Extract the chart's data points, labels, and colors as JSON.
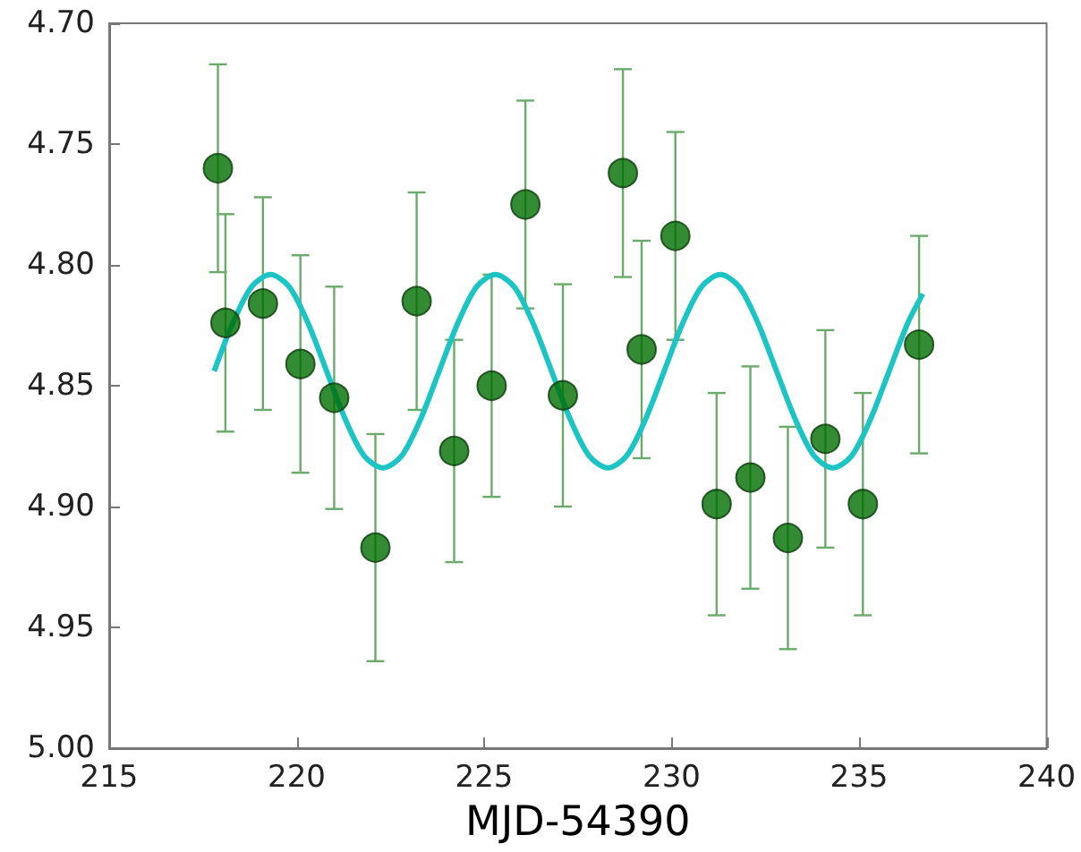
{
  "chart_data": {
    "type": "scatter",
    "xlabel": "MJD-54390",
    "xlim": [
      215,
      240
    ],
    "xticks": [
      215,
      220,
      225,
      230,
      235,
      240
    ],
    "ylim": [
      5.0,
      4.7
    ],
    "yticks": [
      {
        "value": 4.7,
        "label": "4.70"
      },
      {
        "value": 4.75,
        "label": "4.75"
      },
      {
        "value": 4.8,
        "label": "4.80"
      },
      {
        "value": 4.85,
        "label": "4.85"
      },
      {
        "value": 4.9,
        "label": "4.90"
      },
      {
        "value": 4.95,
        "label": "4.95"
      },
      {
        "value": 5.0,
        "label": "5.00"
      }
    ],
    "grid": false,
    "series": [
      {
        "color": "#006e00",
        "marker": "circle",
        "x": [
          217.9,
          218.1,
          219.1,
          220.1,
          221.0,
          222.1,
          223.2,
          224.2,
          225.2,
          226.1,
          227.1,
          228.7,
          229.2,
          230.1,
          231.2,
          232.1,
          233.1,
          234.1,
          235.1,
          236.6
        ],
        "values": [
          4.76,
          4.824,
          4.816,
          4.841,
          4.855,
          4.917,
          4.815,
          4.877,
          4.85,
          4.775,
          4.854,
          4.762,
          4.835,
          4.788,
          4.899,
          4.888,
          4.913,
          4.872,
          4.899,
          4.833
        ],
        "errors": [
          0.043,
          0.045,
          0.044,
          0.045,
          0.046,
          0.047,
          0.045,
          0.046,
          0.046,
          0.043,
          0.046,
          0.043,
          0.045,
          0.043,
          0.046,
          0.046,
          0.046,
          0.045,
          0.046,
          0.045
        ]
      },
      {
        "type": "line",
        "color": "#1cc4c4",
        "marker": "none",
        "line_style": "solid",
        "x": [
          217.8,
          218.3,
          218.8,
          219.3,
          219.8,
          220.3,
          220.8,
          221.3,
          221.8,
          222.3,
          222.8,
          223.3,
          223.8,
          224.3,
          224.8,
          225.3,
          225.8,
          226.3,
          226.8,
          227.3,
          227.8,
          228.3,
          228.8,
          229.3,
          229.8,
          230.3,
          230.8,
          231.3,
          231.8,
          232.3,
          232.8,
          233.3,
          233.8,
          234.3,
          234.8,
          235.3,
          235.8,
          236.3,
          236.7
        ],
        "values": [
          4.844,
          4.824,
          4.809,
          4.804,
          4.809,
          4.824,
          4.844,
          4.864,
          4.879,
          4.884,
          4.879,
          4.864,
          4.844,
          4.824,
          4.809,
          4.804,
          4.809,
          4.824,
          4.844,
          4.864,
          4.879,
          4.884,
          4.879,
          4.864,
          4.844,
          4.824,
          4.809,
          4.804,
          4.809,
          4.824,
          4.844,
          4.864,
          4.879,
          4.884,
          4.879,
          4.864,
          4.844,
          4.824,
          4.812
        ]
      }
    ]
  }
}
